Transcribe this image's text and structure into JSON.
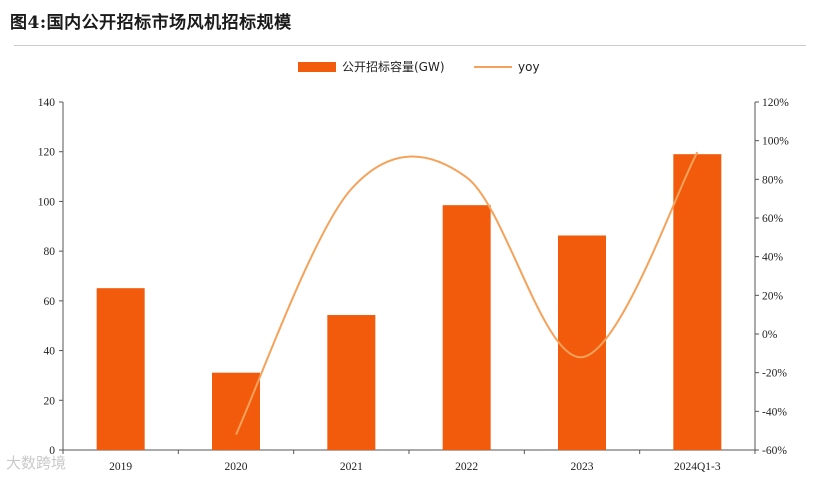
{
  "title": "图4:国内公开招标市场风机招标规模",
  "watermark": "大数跨境",
  "chart_data": {
    "type": "bar",
    "categories": [
      "2019",
      "2020",
      "2021",
      "2022",
      "2023",
      "2024Q1-3"
    ],
    "series": [
      {
        "name": "公开招标容量(GW)",
        "type": "bar",
        "axis": "left",
        "values": [
          65.1,
          31.1,
          54.3,
          98.5,
          86.3,
          119.0
        ]
      },
      {
        "name": "yoy",
        "type": "line",
        "axis": "right",
        "values": [
          null,
          -52,
          75,
          81,
          -12,
          94
        ]
      }
    ],
    "y_left": {
      "min": 0,
      "max": 140,
      "step": 20,
      "ticks": [
        "0",
        "20",
        "40",
        "60",
        "80",
        "100",
        "120",
        "140"
      ]
    },
    "y_right": {
      "min": -60,
      "max": 120,
      "step": 20,
      "ticks": [
        "-60%",
        "-40%",
        "-20%",
        "0%",
        "20%",
        "40%",
        "60%",
        "80%",
        "100%",
        "120%"
      ]
    },
    "legend": "top-center",
    "grid": false,
    "colors": {
      "bar": "#f25a0c",
      "line": "#f6a25a"
    }
  }
}
